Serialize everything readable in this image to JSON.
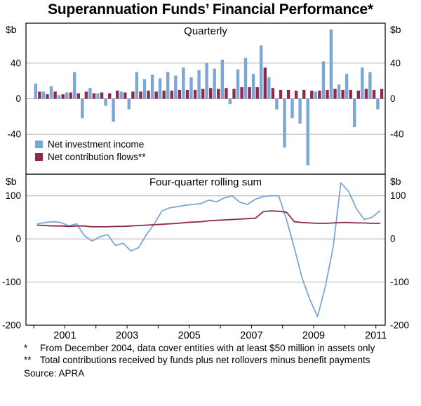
{
  "title": "Superannuation Funds’ Financial Performance*",
  "footnotes": [
    {
      "marker": "*",
      "text": "From December 2004, data cover entities with at least $50 million in assets only"
    },
    {
      "marker": "**",
      "text": "Total contributions received by funds plus net rollovers minus benefit payments"
    }
  ],
  "source": "Source: APRA",
  "chart_data": [
    {
      "type": "bar",
      "title": "Quarterly",
      "unit": "$b",
      "x_start_year": 2000,
      "x_step_years": 0.25,
      "ylim": [
        -85,
        85
      ],
      "yticks": [
        40,
        0,
        -40
      ],
      "xticks": [
        2001,
        2003,
        2005,
        2007,
        2009,
        2011
      ],
      "legend_position": "bottom-left",
      "series": [
        {
          "name": "Net investment income",
          "color": "#7ba7d7",
          "values": [
            17,
            8,
            14,
            4,
            7,
            30,
            -22,
            12,
            6,
            -8,
            -26,
            8,
            -12,
            30,
            22,
            27,
            23,
            30,
            26,
            35,
            24,
            32,
            40,
            34,
            44,
            -6,
            33,
            46,
            28,
            60,
            24,
            -12,
            -55,
            -22,
            -28,
            -75,
            8,
            42,
            78,
            16,
            28,
            -32,
            35,
            30,
            -12
          ]
        },
        {
          "name": "Net contribution flows**",
          "color": "#8e2a52",
          "values": [
            8,
            5,
            8,
            5,
            7,
            6,
            8,
            6,
            7,
            6,
            9,
            7,
            8,
            8,
            9,
            8,
            9,
            9,
            10,
            10,
            10,
            11,
            12,
            11,
            12,
            11,
            13,
            13,
            13,
            35,
            12,
            10,
            10,
            9,
            10,
            9,
            9,
            10,
            11,
            10,
            10,
            9,
            11,
            10,
            11
          ]
        }
      ]
    },
    {
      "type": "line",
      "title": "Four-quarter rolling sum",
      "unit": "$b",
      "x_start_year": 2000,
      "x_step_years": 0.25,
      "ylim": [
        -200,
        150
      ],
      "yticks": [
        100,
        0,
        -100,
        -200
      ],
      "xticks": [
        2001,
        2003,
        2005,
        2007,
        2009,
        2011
      ],
      "series": [
        {
          "name": "Net investment income",
          "color": "#7ba7d7",
          "values": [
            35,
            38,
            40,
            38,
            30,
            35,
            8,
            -5,
            5,
            10,
            -15,
            -10,
            -28,
            -20,
            10,
            35,
            65,
            72,
            75,
            78,
            80,
            82,
            90,
            86,
            95,
            100,
            85,
            80,
            92,
            98,
            100,
            100,
            45,
            -20,
            -90,
            -140,
            -180,
            -110,
            -20,
            130,
            110,
            70,
            45,
            50,
            65
          ]
        },
        {
          "name": "Net contribution flows**",
          "color": "#8e2a52",
          "values": [
            32,
            31,
            30,
            30,
            29,
            30,
            30,
            28,
            28,
            28,
            29,
            29,
            30,
            31,
            32,
            33,
            34,
            35,
            36,
            38,
            39,
            40,
            42,
            43,
            44,
            45,
            46,
            47,
            48,
            63,
            65,
            64,
            62,
            40,
            38,
            37,
            36,
            36,
            37,
            38,
            38,
            37,
            37,
            36,
            36
          ]
        }
      ]
    }
  ]
}
